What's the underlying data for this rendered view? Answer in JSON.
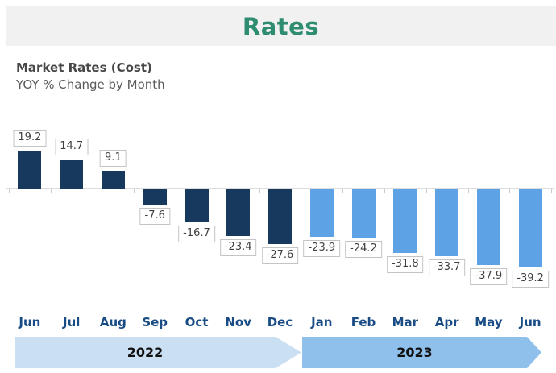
{
  "header": {
    "title": "Rates",
    "title_color": "#2e8c71",
    "band_color": "#f1f1f1"
  },
  "chart_heading": {
    "line1": "Market Rates (Cost)",
    "line2": "YOY % Change  by Month"
  },
  "chart_data": {
    "type": "bar",
    "title": "Market Rates (Cost)",
    "subtitle": "YOY % Change by Month",
    "categories": [
      "Jun",
      "Jul",
      "Aug",
      "Sep",
      "Oct",
      "Nov",
      "Dec",
      "Jan",
      "Feb",
      "Mar",
      "Apr",
      "May",
      "Jun"
    ],
    "category_years": [
      "2022",
      "2022",
      "2022",
      "2022",
      "2022",
      "2022",
      "2022",
      "2023",
      "2023",
      "2023",
      "2023",
      "2023",
      "2023"
    ],
    "values": [
      19.2,
      14.7,
      9.1,
      -7.6,
      -16.7,
      -23.4,
      -27.6,
      -23.9,
      -24.2,
      -31.8,
      -33.7,
      -37.9,
      -39.2
    ],
    "data_labels": [
      "19.2",
      "14.7",
      "9.1",
      "-7.6",
      "-16.7",
      "-23.4",
      "-27.6",
      "-23.9",
      "-24.2",
      "-31.8",
      "-33.7",
      "-37.9",
      "-39.2"
    ],
    "series_colors": {
      "2022": "#17395e",
      "2023": "#5da2e4"
    },
    "xlabel": "",
    "ylabel": "",
    "ylim": [
      -40,
      20
    ],
    "baseline": 0,
    "gridlines": false,
    "legend_position": "none",
    "data_label_style": "boxed",
    "month_label_color": "#1a4c86"
  },
  "timeline": {
    "bands": [
      {
        "label": "2022",
        "color": "#cbdff3"
      },
      {
        "label": "2023",
        "color": "#8fc0ec"
      }
    ]
  }
}
